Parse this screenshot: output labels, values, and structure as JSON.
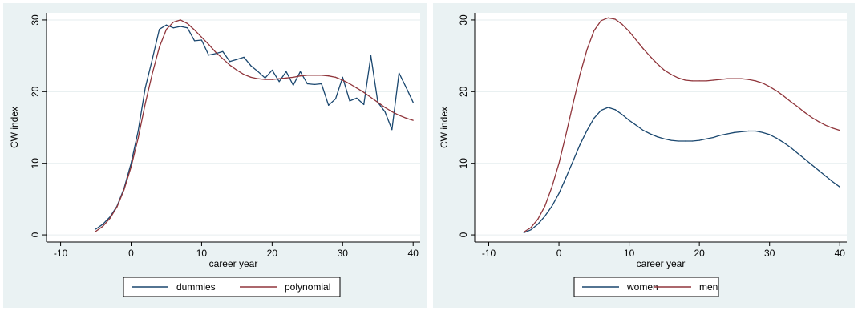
{
  "chart_data": [
    {
      "type": "line",
      "xlabel": "career year",
      "ylabel": "CW index",
      "xlim": [
        -12,
        41
      ],
      "ylim": [
        -1,
        31
      ],
      "xticks": [
        -10,
        0,
        10,
        20,
        30,
        40
      ],
      "yticks": [
        0,
        10,
        20,
        30
      ],
      "grid": true,
      "legend_position": "bottom",
      "series": [
        {
          "name": "dummies",
          "color": "#1a476f",
          "x": [
            -5,
            -4,
            -3,
            -2,
            -1,
            0,
            1,
            2,
            3,
            4,
            5,
            6,
            7,
            8,
            9,
            10,
            11,
            12,
            13,
            14,
            15,
            16,
            17,
            18,
            19,
            20,
            21,
            22,
            23,
            24,
            25,
            26,
            27,
            28,
            29,
            30,
            31,
            32,
            33,
            34,
            35,
            36,
            37,
            38,
            39,
            40
          ],
          "y": [
            0.8,
            1.5,
            2.5,
            4.0,
            6.5,
            10.0,
            14.5,
            20.5,
            24.5,
            28.7,
            29.3,
            28.9,
            29.1,
            28.9,
            27.1,
            27.2,
            25.1,
            25.3,
            25.6,
            24.2,
            24.5,
            24.8,
            23.6,
            22.8,
            21.9,
            23.0,
            21.4,
            22.8,
            20.9,
            22.8,
            21.1,
            21.0,
            21.1,
            18.1,
            19.0,
            22.0,
            18.7,
            19.1,
            18.2,
            25.0,
            18.5,
            17.2,
            14.7,
            22.6,
            20.6,
            18.5
          ]
        },
        {
          "name": "polynomial",
          "color": "#90353b",
          "x": [
            -5,
            -4,
            -3,
            -2,
            -1,
            0,
            1,
            2,
            3,
            4,
            5,
            6,
            7,
            8,
            9,
            10,
            11,
            12,
            13,
            14,
            15,
            16,
            17,
            18,
            19,
            20,
            21,
            22,
            23,
            24,
            25,
            26,
            27,
            28,
            29,
            30,
            31,
            32,
            33,
            34,
            35,
            36,
            37,
            38,
            39,
            40
          ],
          "y": [
            0.5,
            1.2,
            2.3,
            3.9,
            6.3,
            9.5,
            13.5,
            18.3,
            22.5,
            26.2,
            28.7,
            29.7,
            30.0,
            29.5,
            28.6,
            27.6,
            26.6,
            25.5,
            24.6,
            23.7,
            23.0,
            22.4,
            22.0,
            21.8,
            21.7,
            21.7,
            21.8,
            21.9,
            22.0,
            22.2,
            22.3,
            22.3,
            22.3,
            22.2,
            22.0,
            21.6,
            21.1,
            20.5,
            19.9,
            19.2,
            18.5,
            17.8,
            17.2,
            16.7,
            16.3,
            16.0
          ]
        }
      ]
    },
    {
      "type": "line",
      "xlabel": "career year",
      "ylabel": "CW index",
      "xlim": [
        -12,
        41
      ],
      "ylim": [
        -1,
        31
      ],
      "xticks": [
        -10,
        0,
        10,
        20,
        30,
        40
      ],
      "yticks": [
        0,
        10,
        20,
        30
      ],
      "grid": true,
      "legend_position": "bottom",
      "series": [
        {
          "name": "women",
          "color": "#1a476f",
          "x": [
            -5,
            -4,
            -3,
            -2,
            -1,
            0,
            1,
            2,
            3,
            4,
            5,
            6,
            7,
            8,
            9,
            10,
            11,
            12,
            13,
            14,
            15,
            16,
            17,
            18,
            19,
            20,
            21,
            22,
            23,
            24,
            25,
            26,
            27,
            28,
            29,
            30,
            31,
            32,
            33,
            34,
            35,
            36,
            37,
            38,
            39,
            40
          ],
          "y": [
            0.3,
            0.7,
            1.5,
            2.6,
            4.0,
            5.8,
            8.0,
            10.3,
            12.6,
            14.6,
            16.3,
            17.4,
            17.8,
            17.5,
            16.8,
            16.0,
            15.3,
            14.6,
            14.1,
            13.7,
            13.4,
            13.2,
            13.1,
            13.1,
            13.1,
            13.2,
            13.4,
            13.6,
            13.9,
            14.1,
            14.3,
            14.4,
            14.5,
            14.5,
            14.3,
            14.0,
            13.5,
            12.9,
            12.2,
            11.4,
            10.6,
            9.8,
            9.0,
            8.2,
            7.4,
            6.7
          ]
        },
        {
          "name": "men",
          "color": "#90353b",
          "x": [
            -5,
            -4,
            -3,
            -2,
            -1,
            0,
            1,
            2,
            3,
            4,
            5,
            6,
            7,
            8,
            9,
            10,
            11,
            12,
            13,
            14,
            15,
            16,
            17,
            18,
            19,
            20,
            21,
            22,
            23,
            24,
            25,
            26,
            27,
            28,
            29,
            30,
            31,
            32,
            33,
            34,
            35,
            36,
            37,
            38,
            39,
            40
          ],
          "y": [
            0.4,
            1.0,
            2.2,
            4.0,
            6.7,
            10.0,
            14.0,
            18.3,
            22.4,
            25.9,
            28.5,
            29.9,
            30.3,
            30.1,
            29.4,
            28.4,
            27.2,
            26.0,
            24.9,
            23.9,
            23.0,
            22.4,
            21.9,
            21.6,
            21.5,
            21.5,
            21.5,
            21.6,
            21.7,
            21.8,
            21.8,
            21.8,
            21.7,
            21.5,
            21.2,
            20.7,
            20.1,
            19.4,
            18.6,
            17.9,
            17.1,
            16.4,
            15.8,
            15.3,
            14.9,
            14.6
          ]
        }
      ]
    }
  ]
}
